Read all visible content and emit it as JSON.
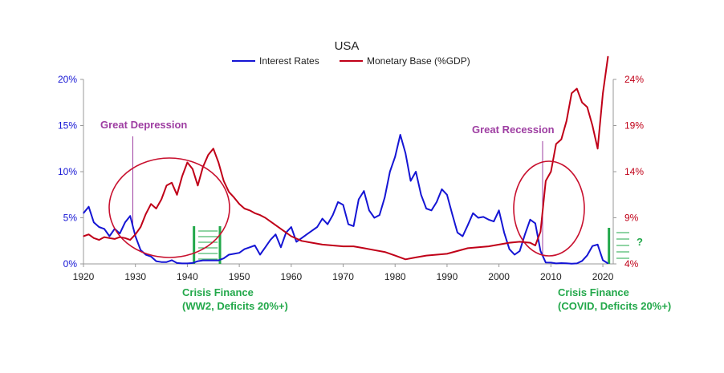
{
  "chart_data": {
    "type": "line",
    "title": "USA",
    "legend": {
      "placement": "top-center",
      "entries": [
        {
          "name": "Interest Rates",
          "color": "#1515d4"
        },
        {
          "name": "Monetary Base (%GDP)",
          "color": "#c00018"
        }
      ]
    },
    "xaxis": {
      "range": [
        1920,
        2022
      ],
      "ticks": [
        "1920",
        "1930",
        "1940",
        "1950",
        "1960",
        "1970",
        "1980",
        "1990",
        "2000",
        "2010",
        "2020"
      ]
    },
    "yaxis_left": {
      "range": [
        0,
        20
      ],
      "ticks": [
        "0%",
        "5%",
        "10%",
        "15%",
        "20%"
      ],
      "color": "#1515d4"
    },
    "yaxis_right": {
      "range": [
        4,
        24
      ],
      "ticks": [
        "4%",
        "9%",
        "14%",
        "19%",
        "24%"
      ],
      "color": "#c00018"
    },
    "series": [
      {
        "name": "Interest Rates",
        "color": "#1515d4",
        "axis": "left",
        "points": [
          [
            1920,
            5.5
          ],
          [
            1921,
            6.2
          ],
          [
            1922,
            4.5
          ],
          [
            1923,
            4.0
          ],
          [
            1924,
            3.8
          ],
          [
            1925,
            3.0
          ],
          [
            1926,
            3.8
          ],
          [
            1927,
            3.3
          ],
          [
            1928,
            4.5
          ],
          [
            1929,
            5.2
          ],
          [
            1930,
            3.0
          ],
          [
            1931,
            1.5
          ],
          [
            1932,
            1.0
          ],
          [
            1933,
            0.8
          ],
          [
            1934,
            0.3
          ],
          [
            1935,
            0.2
          ],
          [
            1936,
            0.2
          ],
          [
            1937,
            0.4
          ],
          [
            1938,
            0.1
          ],
          [
            1939,
            0.05
          ],
          [
            1940,
            0.05
          ],
          [
            1941,
            0.1
          ],
          [
            1942,
            0.3
          ],
          [
            1943,
            0.38
          ],
          [
            1944,
            0.38
          ],
          [
            1945,
            0.38
          ],
          [
            1946,
            0.38
          ],
          [
            1947,
            0.6
          ],
          [
            1948,
            1.0
          ],
          [
            1949,
            1.1
          ],
          [
            1950,
            1.2
          ],
          [
            1951,
            1.6
          ],
          [
            1952,
            1.8
          ],
          [
            1953,
            2.0
          ],
          [
            1954,
            1.0
          ],
          [
            1955,
            1.8
          ],
          [
            1956,
            2.6
          ],
          [
            1957,
            3.2
          ],
          [
            1958,
            1.8
          ],
          [
            1959,
            3.4
          ],
          [
            1960,
            4.0
          ],
          [
            1961,
            2.4
          ],
          [
            1962,
            2.8
          ],
          [
            1963,
            3.2
          ],
          [
            1964,
            3.6
          ],
          [
            1965,
            4.0
          ],
          [
            1966,
            4.9
          ],
          [
            1967,
            4.3
          ],
          [
            1968,
            5.3
          ],
          [
            1969,
            6.7
          ],
          [
            1970,
            6.4
          ],
          [
            1971,
            4.3
          ],
          [
            1972,
            4.1
          ],
          [
            1973,
            7.0
          ],
          [
            1974,
            7.9
          ],
          [
            1975,
            5.8
          ],
          [
            1976,
            5.0
          ],
          [
            1977,
            5.3
          ],
          [
            1978,
            7.2
          ],
          [
            1979,
            10.0
          ],
          [
            1980,
            11.6
          ],
          [
            1981,
            14.0
          ],
          [
            1982,
            12.0
          ],
          [
            1983,
            9.0
          ],
          [
            1984,
            10.0
          ],
          [
            1985,
            7.5
          ],
          [
            1986,
            6.0
          ],
          [
            1987,
            5.8
          ],
          [
            1988,
            6.7
          ],
          [
            1989,
            8.1
          ],
          [
            1990,
            7.5
          ],
          [
            1991,
            5.4
          ],
          [
            1992,
            3.4
          ],
          [
            1993,
            3.0
          ],
          [
            1994,
            4.2
          ],
          [
            1995,
            5.5
          ],
          [
            1996,
            5.0
          ],
          [
            1997,
            5.1
          ],
          [
            1998,
            4.8
          ],
          [
            1999,
            4.6
          ],
          [
            2000,
            5.8
          ],
          [
            2001,
            3.4
          ],
          [
            2002,
            1.6
          ],
          [
            2003,
            1.0
          ],
          [
            2004,
            1.4
          ],
          [
            2005,
            3.2
          ],
          [
            2006,
            4.8
          ],
          [
            2007,
            4.4
          ],
          [
            2008,
            1.4
          ],
          [
            2009,
            0.15
          ],
          [
            2010,
            0.14
          ],
          [
            2011,
            0.05
          ],
          [
            2012,
            0.09
          ],
          [
            2013,
            0.06
          ],
          [
            2014,
            0.03
          ],
          [
            2015,
            0.05
          ],
          [
            2016,
            0.32
          ],
          [
            2017,
            0.93
          ],
          [
            2018,
            1.94
          ],
          [
            2019,
            2.1
          ],
          [
            2020,
            0.4
          ],
          [
            2021,
            0.05
          ]
        ]
      },
      {
        "name": "Monetary Base (%GDP)",
        "color": "#c00018",
        "axis": "right",
        "points": [
          [
            1920,
            7.0
          ],
          [
            1921,
            7.2
          ],
          [
            1922,
            6.8
          ],
          [
            1923,
            6.6
          ],
          [
            1924,
            6.9
          ],
          [
            1925,
            6.8
          ],
          [
            1926,
            6.7
          ],
          [
            1927,
            6.9
          ],
          [
            1928,
            6.8
          ],
          [
            1929,
            6.6
          ],
          [
            1930,
            7.2
          ],
          [
            1931,
            8.0
          ],
          [
            1932,
            9.4
          ],
          [
            1933,
            10.5
          ],
          [
            1934,
            10.0
          ],
          [
            1935,
            11.0
          ],
          [
            1936,
            12.5
          ],
          [
            1937,
            12.8
          ],
          [
            1938,
            11.5
          ],
          [
            1939,
            13.5
          ],
          [
            1940,
            15.0
          ],
          [
            1941,
            14.3
          ],
          [
            1942,
            12.5
          ],
          [
            1943,
            14.5
          ],
          [
            1944,
            15.8
          ],
          [
            1945,
            16.5
          ],
          [
            1946,
            15.0
          ],
          [
            1947,
            13.0
          ],
          [
            1948,
            11.8
          ],
          [
            1949,
            11.2
          ],
          [
            1950,
            10.5
          ],
          [
            1951,
            10.0
          ],
          [
            1952,
            9.8
          ],
          [
            1953,
            9.5
          ],
          [
            1954,
            9.3
          ],
          [
            1955,
            9.0
          ],
          [
            1956,
            8.6
          ],
          [
            1957,
            8.2
          ],
          [
            1958,
            7.8
          ],
          [
            1959,
            7.4
          ],
          [
            1960,
            7.0
          ],
          [
            1962,
            6.5
          ],
          [
            1964,
            6.3
          ],
          [
            1966,
            6.1
          ],
          [
            1968,
            6.0
          ],
          [
            1970,
            5.9
          ],
          [
            1972,
            5.9
          ],
          [
            1974,
            5.7
          ],
          [
            1976,
            5.5
          ],
          [
            1978,
            5.3
          ],
          [
            1980,
            4.9
          ],
          [
            1982,
            4.5
          ],
          [
            1984,
            4.7
          ],
          [
            1986,
            4.9
          ],
          [
            1988,
            5.0
          ],
          [
            1990,
            5.1
          ],
          [
            1992,
            5.4
          ],
          [
            1994,
            5.7
          ],
          [
            1996,
            5.8
          ],
          [
            1998,
            5.9
          ],
          [
            2000,
            6.1
          ],
          [
            2002,
            6.3
          ],
          [
            2004,
            6.4
          ],
          [
            2006,
            6.3
          ],
          [
            2007,
            6.0
          ],
          [
            2008,
            7.5
          ],
          [
            2009,
            13.0
          ],
          [
            2010,
            14.0
          ],
          [
            2011,
            17.0
          ],
          [
            2012,
            17.5
          ],
          [
            2013,
            19.5
          ],
          [
            2014,
            22.5
          ],
          [
            2015,
            23.0
          ],
          [
            2016,
            21.5
          ],
          [
            2017,
            21.0
          ],
          [
            2018,
            19.0
          ],
          [
            2019,
            16.5
          ],
          [
            2020,
            22.5
          ],
          [
            2021,
            26.5
          ]
        ]
      }
    ],
    "annotations": {
      "great_depression": "Great Depression",
      "great_recession": "Great Recession",
      "crisis_ww2_line1": "Crisis Finance",
      "crisis_ww2_line2": "(WW2, Deficits 20%+)",
      "crisis_covid_line1": "Crisis Finance",
      "crisis_covid_line2": "(COVID, Deficits 20%+)",
      "question_mark": "?"
    },
    "annotation_colors": {
      "depression": "#9e3ea2",
      "crisis": "#22a84a",
      "circle": "#c8102e"
    }
  }
}
